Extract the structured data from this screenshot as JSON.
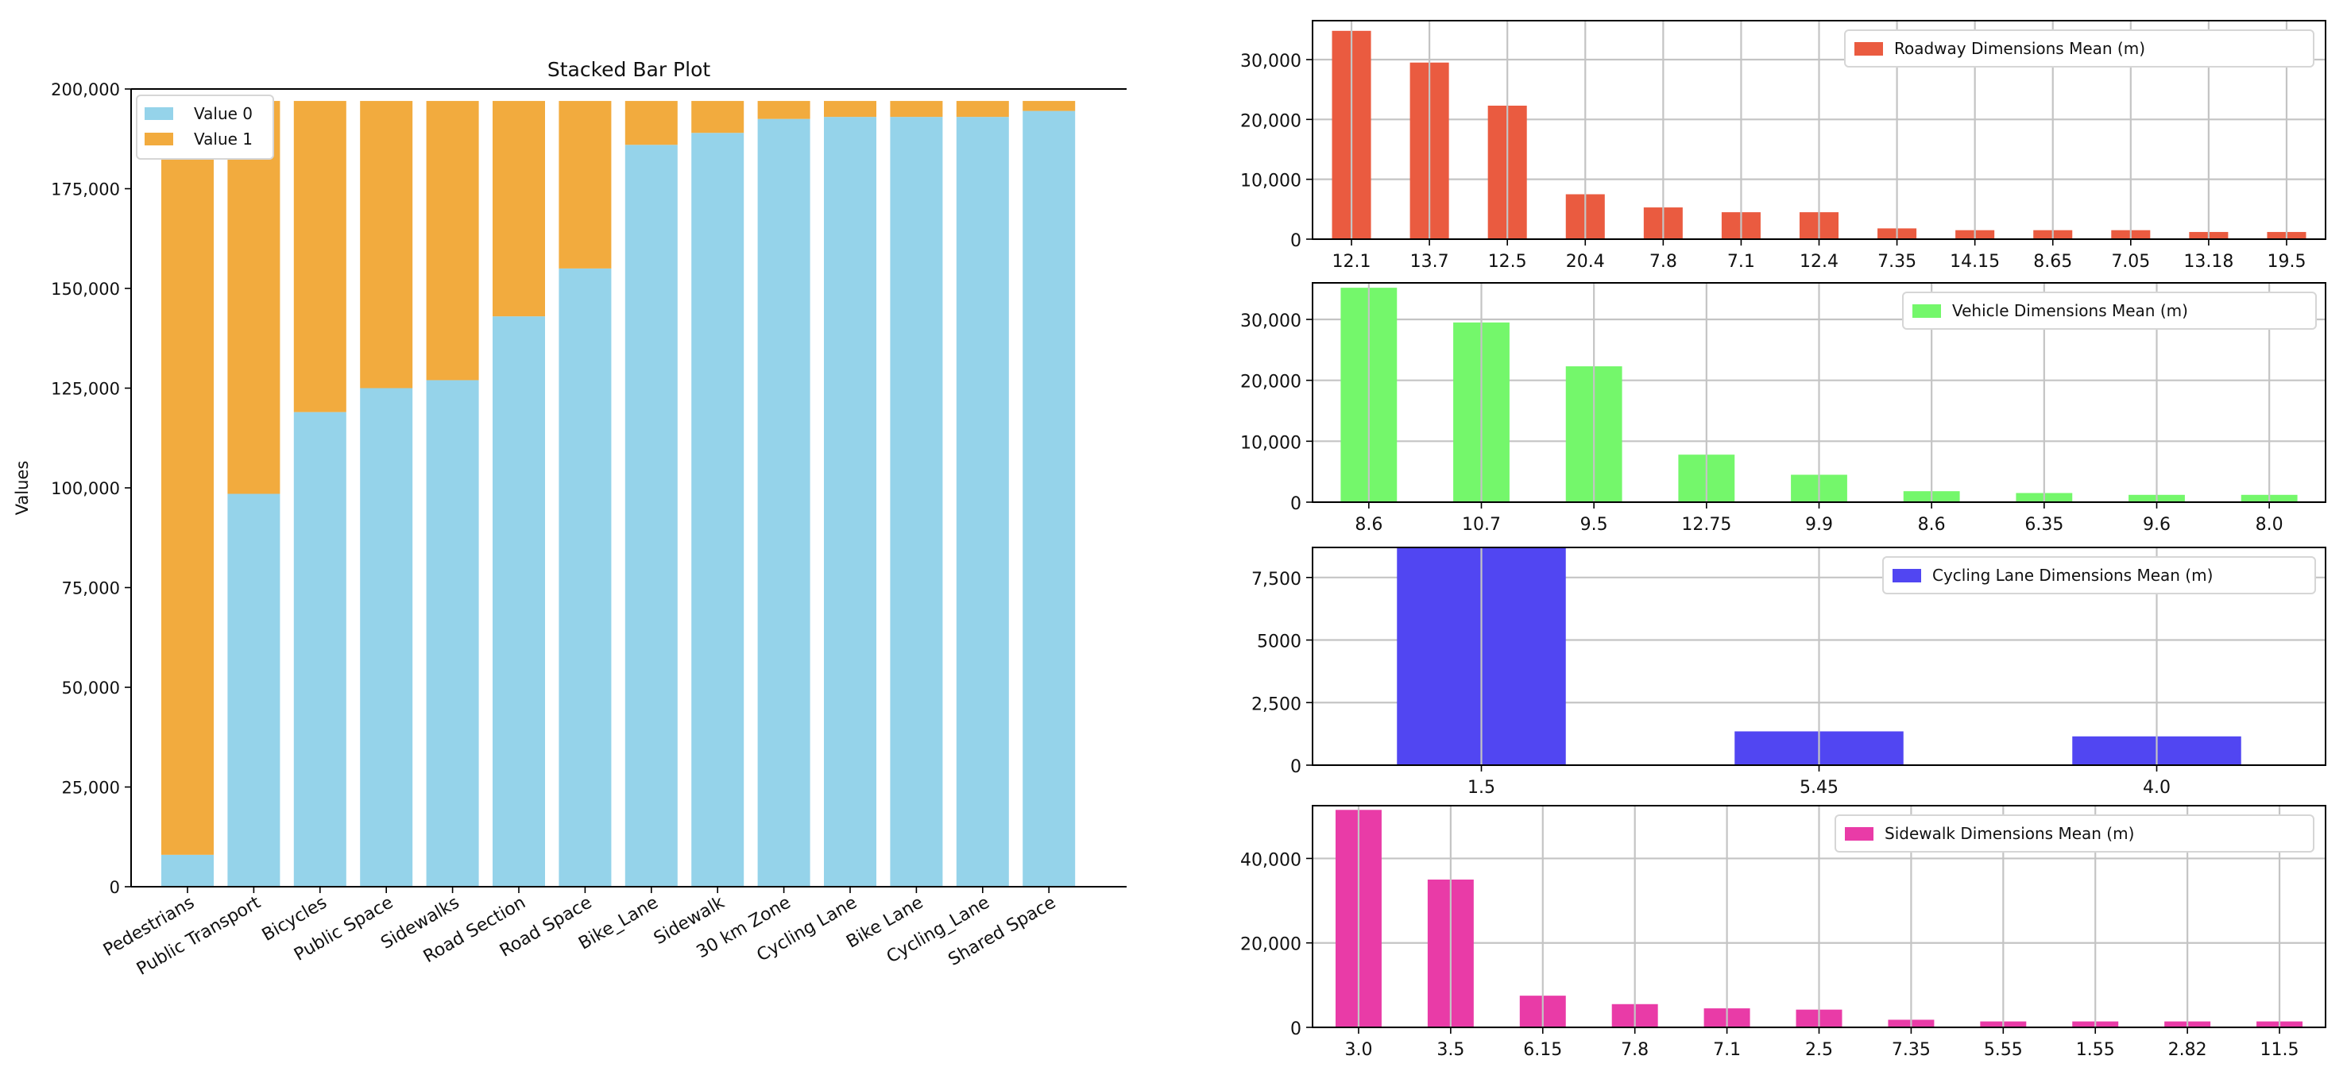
{
  "chart_data": [
    {
      "id": "stacked",
      "type": "bar",
      "stacked": true,
      "title": "Stacked Bar Plot",
      "xlabel": "",
      "ylabel": "Values",
      "ylim": [
        0,
        200000
      ],
      "yticks": [
        0,
        25000,
        50000,
        75000,
        100000,
        125000,
        150000,
        175000,
        200000
      ],
      "ytick_labels": [
        "0",
        "25,000",
        "50,000",
        "75,000",
        "100,000",
        "125,000",
        "150,000",
        "175,000",
        "200,000"
      ],
      "grid": false,
      "legend_position": "top-left",
      "categories": [
        "Pedestrians",
        "Public Transport",
        "Bicycles",
        "Public Space",
        "Sidewalks",
        "Road Section",
        "Road Space",
        "Bike_Lane",
        "Sidewalk",
        "30 km Zone",
        "Cycling Lane",
        "Bike Lane",
        "Cycling_Lane",
        "Shared Space"
      ],
      "series": [
        {
          "name": "Value 0",
          "color": "#95d3ea",
          "values": [
            8000,
            98500,
            119000,
            125000,
            127000,
            143000,
            155000,
            186000,
            189000,
            192500,
            193000,
            193000,
            193000,
            194500
          ]
        },
        {
          "name": "Value 1",
          "color": "#f2ab3e",
          "values": [
            189000,
            98500,
            78000,
            72000,
            70000,
            54000,
            42000,
            11000,
            8000,
            4500,
            4000,
            4000,
            4000,
            2500
          ]
        }
      ]
    },
    {
      "id": "roadway",
      "type": "bar",
      "title": "",
      "xlabel": "",
      "ylabel": "",
      "ylim": [
        0,
        36500
      ],
      "yticks": [
        0,
        10000,
        20000,
        30000
      ],
      "ytick_labels": [
        "0",
        "10,000",
        "20,000",
        "30,000"
      ],
      "grid": true,
      "legend_position": "top-right",
      "series_name": "Roadway Dimensions Mean (m)",
      "color": "#ea5b40",
      "categories": [
        "12.1",
        "13.7",
        "12.5",
        "20.4",
        "7.8",
        "7.1",
        "12.4",
        "7.35",
        "14.15",
        "8.65",
        "7.05",
        "13.18",
        "19.5"
      ],
      "values": [
        34800,
        29500,
        22300,
        7500,
        5300,
        4500,
        4500,
        1800,
        1500,
        1500,
        1500,
        1200,
        1200
      ]
    },
    {
      "id": "vehicle",
      "type": "bar",
      "title": "",
      "xlabel": "",
      "ylabel": "",
      "ylim": [
        0,
        36000
      ],
      "yticks": [
        0,
        10000,
        20000,
        30000
      ],
      "ytick_labels": [
        "0",
        "10,000",
        "20,000",
        "30,000"
      ],
      "grid": true,
      "legend_position": "top-right",
      "series_name": "Vehicle Dimensions Mean (m)",
      "color": "#74f76b",
      "categories": [
        "8.6",
        "10.7",
        "9.5",
        "12.75",
        "9.9",
        "8.6",
        "6.35",
        "9.6",
        "8.0"
      ],
      "values": [
        35200,
        29500,
        22300,
        7800,
        4500,
        1800,
        1500,
        1200,
        1200
      ]
    },
    {
      "id": "cycling",
      "type": "bar",
      "title": "",
      "xlabel": "",
      "ylabel": "",
      "ylim": [
        0,
        8700
      ],
      "yticks": [
        0,
        2500,
        5000,
        7500
      ],
      "ytick_labels": [
        "0",
        "2,500",
        "5000",
        "7,500"
      ],
      "grid": true,
      "legend_position": "top-right",
      "series_name": "Cycling Lane Dimensions Mean (m)",
      "color": "#5146f2",
      "categories": [
        "1.5",
        "5.45",
        "4.0"
      ],
      "values": [
        8700,
        1350,
        1150
      ]
    },
    {
      "id": "sidewalk",
      "type": "bar",
      "title": "",
      "xlabel": "",
      "ylabel": "",
      "ylim": [
        0,
        52500
      ],
      "yticks": [
        0,
        20000,
        40000
      ],
      "ytick_labels": [
        "0",
        "20,000",
        "40,000"
      ],
      "grid": true,
      "legend_position": "top-right",
      "series_name": "Sidewalk Dimensions Mean (m)",
      "color": "#e93ba7",
      "categories": [
        "3.0",
        "3.5",
        "6.15",
        "7.8",
        "7.1",
        "2.5",
        "7.35",
        "5.55",
        "1.55",
        "2.82",
        "11.5"
      ],
      "values": [
        51500,
        35000,
        7500,
        5500,
        4500,
        4200,
        1800,
        1400,
        1400,
        1400,
        1400
      ]
    }
  ]
}
